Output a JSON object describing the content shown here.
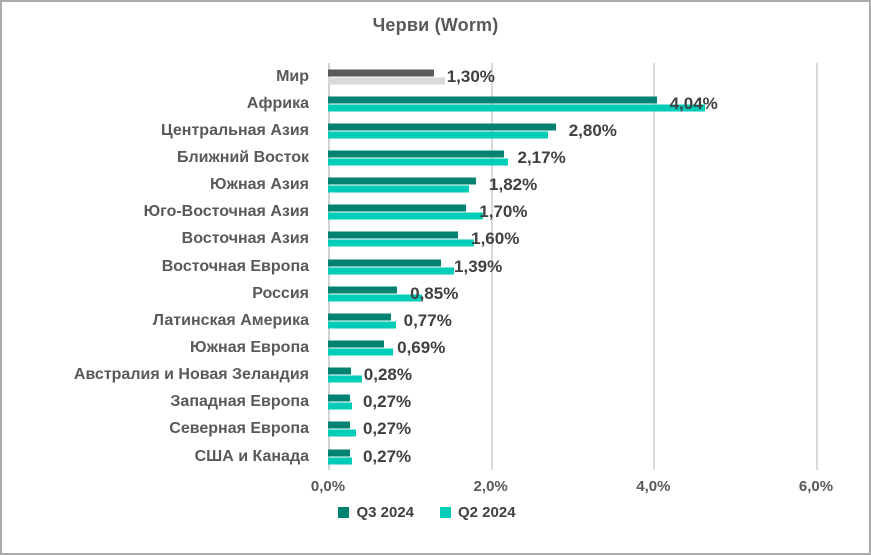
{
  "chart_data": {
    "type": "bar",
    "orientation": "horizontal",
    "title": "Черви (Worm)",
    "categories": [
      "Мир",
      "Африка",
      "Центральная Азия",
      "Ближний Восток",
      "Южная Азия",
      "Юго-Восточная Азия",
      "Восточная Азия",
      "Восточная Европа",
      "Россия",
      "Латинская Америка",
      "Южная Европа",
      "Австралия и Новая Зеландия",
      "Западная Европа",
      "Северная Европа",
      "США и Канада"
    ],
    "series": [
      {
        "name": "Q3 2024",
        "color": "#028270",
        "values": [
          1.3,
          4.04,
          2.8,
          2.17,
          1.82,
          1.7,
          1.6,
          1.39,
          0.85,
          0.77,
          0.69,
          0.28,
          0.27,
          0.27,
          0.27
        ],
        "data_labels": [
          "1,30%",
          "4,04%",
          "2,80%",
          "2,17%",
          "1,82%",
          "1,70%",
          "1,60%",
          "1,39%",
          "0,85%",
          "0,77%",
          "0,69%",
          "0,28%",
          "0,27%",
          "0,27%",
          "0,27%"
        ]
      },
      {
        "name": "Q2 2024",
        "color": "#00CCB8",
        "values": [
          1.44,
          4.64,
          2.71,
          2.21,
          1.73,
          1.91,
          1.8,
          1.55,
          1.15,
          0.84,
          0.8,
          0.42,
          0.29,
          0.34,
          0.29
        ]
      }
    ],
    "category_color_overrides": {
      "0": {
        "q3": "#595959",
        "q2": "#D9D9D9"
      }
    },
    "x_axis": {
      "min": 0,
      "max": 6,
      "tick_labels": [
        "0,0%",
        "2,0%",
        "4,0%",
        "6,0%"
      ]
    },
    "gridlines": true,
    "legend": {
      "position": "bottom",
      "entries": [
        {
          "label": "Q3 2024",
          "color": "#028270"
        },
        {
          "label": "Q2 2024",
          "color": "#00CCB8"
        }
      ]
    },
    "colors": {
      "title_text": "#595959",
      "category_text": "#595959",
      "value_text": "#404040",
      "axis_text": "#595959",
      "gridline": "#D9D9D9",
      "frame_border": "#ABABAB",
      "background": "#FFFFFF"
    }
  }
}
